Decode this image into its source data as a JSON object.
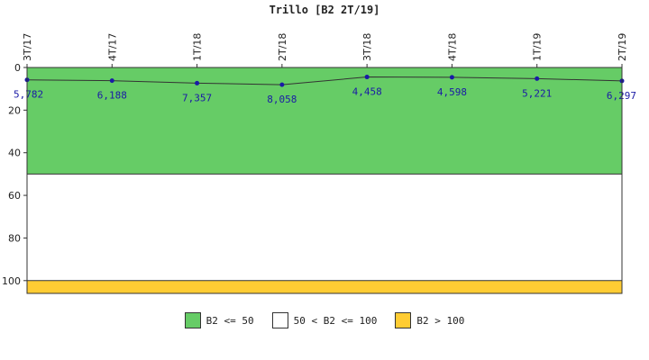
{
  "chart_data": {
    "type": "line",
    "title": "Trillo [B2 2T/19]",
    "xlabel": "",
    "ylabel": "",
    "categories": [
      "3T/17",
      "4T/17",
      "1T/18",
      "2T/18",
      "3T/18",
      "4T/18",
      "1T/19",
      "2T/19"
    ],
    "series": [
      {
        "values": [
          5.782,
          6.188,
          7.357,
          8.058,
          4.458,
          4.598,
          5.221,
          6.297
        ],
        "labels": [
          "5,782",
          "6,188",
          "7,357",
          "8,058",
          "4,458",
          "4,598",
          "5,221",
          "6,297"
        ],
        "color": "#1a1aa6"
      }
    ],
    "ylim": [
      106,
      0
    ],
    "y_axis_inverted": true,
    "yticks": [
      "0",
      "20",
      "40",
      "60",
      "80",
      "100"
    ],
    "bands": [
      {
        "label": "B2 <= 50",
        "from": 0,
        "to": 50,
        "color": "#66cc66"
      },
      {
        "label": "50 < B2 <= 100",
        "from": 50,
        "to": 100,
        "color": "#ffffff"
      },
      {
        "label": "B2 > 100",
        "from": 100,
        "to": 106,
        "color": "#ffcc33"
      }
    ],
    "legend_position": "bottom",
    "grid": false
  }
}
